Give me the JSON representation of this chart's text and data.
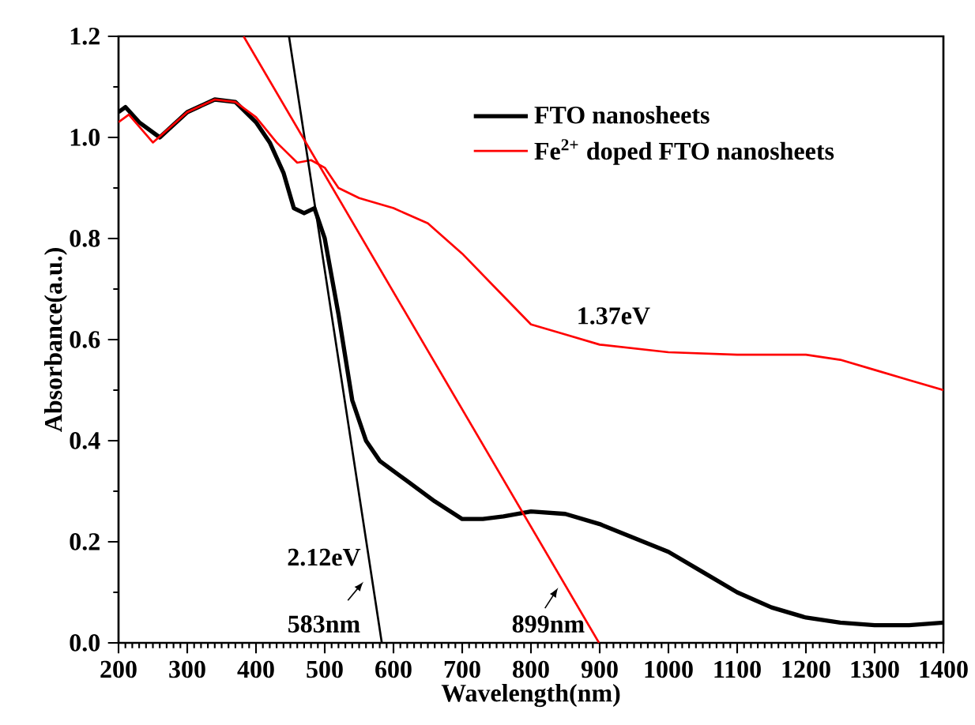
{
  "chart_data": {
    "type": "line",
    "xlabel": "Wavelength(nm)",
    "ylabel": "Absorbance(a.u.)",
    "xlim": [
      200,
      1400
    ],
    "ylim": [
      0,
      1.2
    ],
    "xticks": [
      200,
      300,
      400,
      500,
      600,
      700,
      800,
      900,
      1000,
      1100,
      1200,
      1300,
      1400
    ],
    "yticks": [
      {
        "value": 0,
        "label": "0.0"
      },
      0.2,
      0.4,
      0.6,
      0.8,
      {
        "value": 1,
        "label": "1.0"
      },
      1.2
    ],
    "legend": "top right",
    "marker": "none",
    "line_style": "solid",
    "grid": false,
    "series": [
      {
        "name": "FTO nanosheets",
        "color": "#000000",
        "x": [
          200,
          210,
          230,
          260,
          300,
          340,
          370,
          400,
          420,
          440,
          455,
          470,
          485,
          500,
          520,
          540,
          560,
          580,
          620,
          660,
          700,
          730,
          760,
          800,
          850,
          900,
          1000,
          1050,
          1100,
          1150,
          1200,
          1250,
          1300,
          1350,
          1400
        ],
        "values": [
          1.05,
          1.06,
          1.03,
          1.0,
          1.05,
          1.075,
          1.07,
          1.03,
          0.99,
          0.93,
          0.86,
          0.85,
          0.86,
          0.8,
          0.65,
          0.48,
          0.4,
          0.36,
          0.32,
          0.28,
          0.245,
          0.245,
          0.25,
          0.26,
          0.255,
          0.235,
          0.18,
          0.14,
          0.1,
          0.07,
          0.05,
          0.04,
          0.035,
          0.035,
          0.04
        ]
      },
      {
        "name": "Fe$^{2+}$ doped FTO nanosheets",
        "color": "#ff0000",
        "x": [
          200,
          215,
          250,
          300,
          340,
          370,
          400,
          430,
          460,
          480,
          500,
          520,
          550,
          600,
          650,
          700,
          750,
          800,
          850,
          900,
          1000,
          1100,
          1200,
          1250,
          1300,
          1350,
          1400
        ],
        "values": [
          1.03,
          1.045,
          0.99,
          1.05,
          1.075,
          1.07,
          1.04,
          0.99,
          0.95,
          0.955,
          0.94,
          0.9,
          0.88,
          0.86,
          0.83,
          0.77,
          0.7,
          0.63,
          0.61,
          0.59,
          0.575,
          0.57,
          0.57,
          0.56,
          0.54,
          0.52,
          0.5
        ]
      },
      {
        "type": "line",
        "color": "#000000",
        "x": [
          448,
          583
        ],
        "values": [
          1.2,
          0
        ]
      },
      {
        "type": "line",
        "color": "#ff0000",
        "x": [
          382,
          899
        ],
        "values": [
          1.2,
          0
        ]
      }
    ],
    "annotations": [
      "2.12eV",
      "583nm",
      "899nm",
      "1.37eV"
    ]
  }
}
